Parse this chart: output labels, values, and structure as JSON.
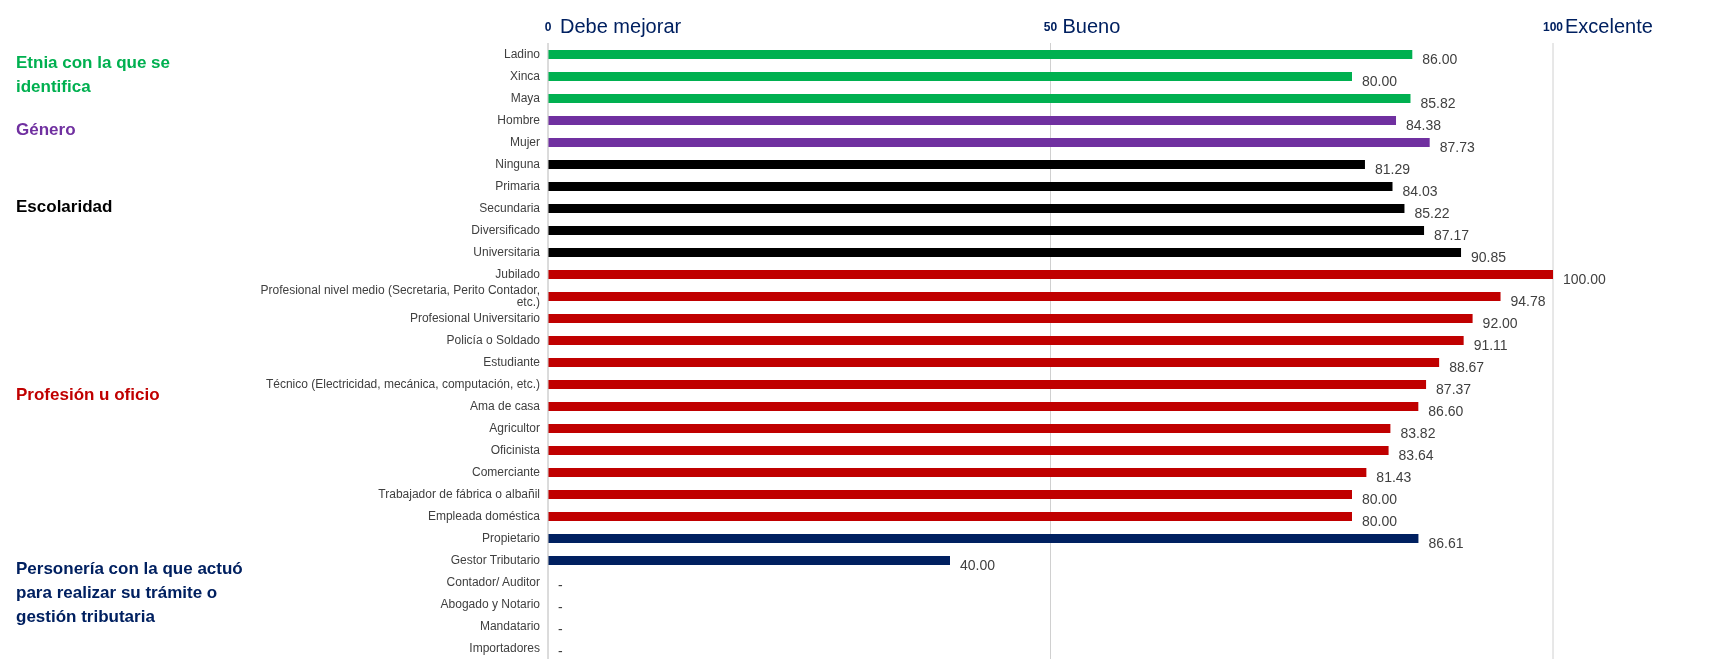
{
  "chart_data": {
    "type": "bar",
    "orientation": "horizontal",
    "categories": [
      "Ladino",
      "Xinca",
      "Maya",
      "Hombre",
      "Mujer",
      "Ninguna",
      "Primaria",
      "Secundaria",
      "Diversificado",
      "Universitaria",
      "Jubilado",
      "Profesional nivel medio (Secretaria, Perito Contador, etc.)",
      "Profesional Universitario",
      "Policía o Soldado",
      "Estudiante",
      "Técnico (Electricidad, mecánica, computación, etc.)",
      "Ama de casa",
      "Agricultor",
      "Oficinista",
      "Comerciante",
      "Trabajador de fábrica o albañil",
      "Empleada doméstica",
      "Propietario",
      "Gestor Tributario",
      "Contador/ Auditor",
      "Abogado y Notario",
      "Mandatario",
      "Importadores"
    ],
    "values": [
      86.0,
      80.0,
      85.82,
      84.38,
      87.73,
      81.29,
      84.03,
      85.22,
      87.17,
      90.85,
      100.0,
      94.78,
      92.0,
      91.11,
      88.67,
      87.37,
      86.6,
      83.82,
      83.64,
      81.43,
      80.0,
      80.0,
      86.61,
      40.0,
      null,
      null,
      null,
      null
    ],
    "value_labels": [
      "86.00",
      "80.00",
      "85.82",
      "84.38",
      "87.73",
      "81.29",
      "84.03",
      "85.22",
      "87.17",
      "90.85",
      "100.00",
      "94.78",
      "92.00",
      "91.11",
      "88.67",
      "87.37",
      "86.60",
      "83.82",
      "83.64",
      "81.43",
      "80.00",
      "80.00",
      "86.61",
      "40.00",
      "-",
      "-",
      "-",
      "-"
    ],
    "colors": [
      "#00b050",
      "#00b050",
      "#00b050",
      "#7030a0",
      "#7030a0",
      "#000000",
      "#000000",
      "#000000",
      "#000000",
      "#000000",
      "#c00000",
      "#c00000",
      "#c00000",
      "#c00000",
      "#c00000",
      "#c00000",
      "#c00000",
      "#c00000",
      "#c00000",
      "#c00000",
      "#c00000",
      "#c00000",
      "#002060",
      "#002060",
      "#002060",
      "#002060",
      "#002060",
      "#002060"
    ],
    "xlim": [
      0,
      100
    ],
    "xticks": [
      0,
      50,
      100
    ],
    "grid": "x",
    "annotations": [
      "Debe mejorar",
      "Bueno",
      "Excelente",
      "Etnia con la que se identifica",
      "Género",
      "Escolaridad",
      "Profesión u oficio",
      "Personería con la que actuó para realizar su trámite o gestión tributaria"
    ]
  }
}
